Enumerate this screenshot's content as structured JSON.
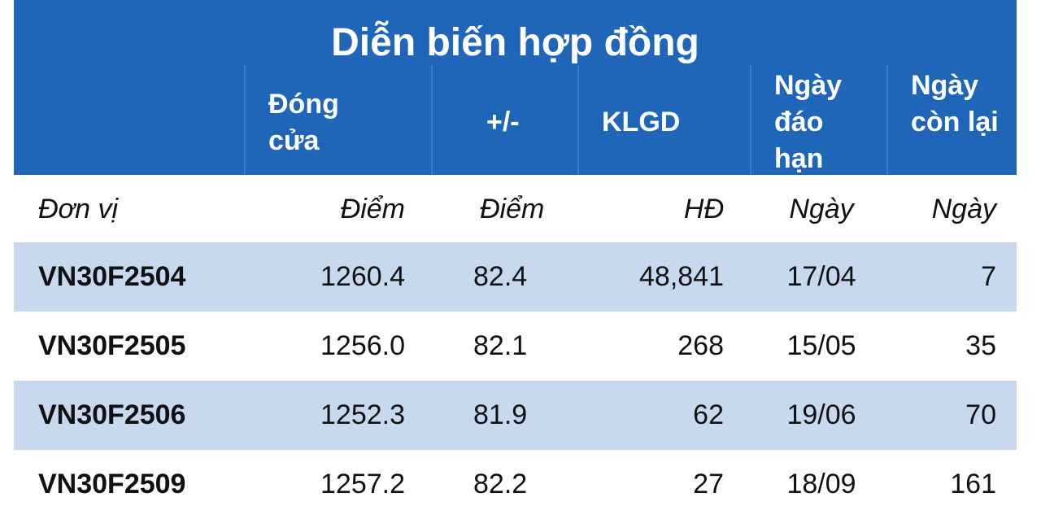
{
  "title": "Diễn biến hợp đồng",
  "headers": [
    "Đóng cửa",
    "+/-",
    "KLGD",
    "Ngày đáo hạn",
    "Ngày còn lại"
  ],
  "units": [
    "Đơn vị",
    "Điểm",
    "Điểm",
    "HĐ",
    "Ngày",
    "Ngày"
  ],
  "rows": [
    [
      "VN30F2504",
      "1260.4",
      "82.4",
      "48,841",
      "17/04",
      "7"
    ],
    [
      "VN30F2505",
      "1256.0",
      "82.1",
      "268",
      "15/05",
      "35"
    ],
    [
      "VN30F2506",
      "1252.3",
      "81.9",
      "62",
      "19/06",
      "70"
    ],
    [
      "VN30F2509",
      "1257.2",
      "82.2",
      "27",
      "18/09",
      "161"
    ]
  ]
}
